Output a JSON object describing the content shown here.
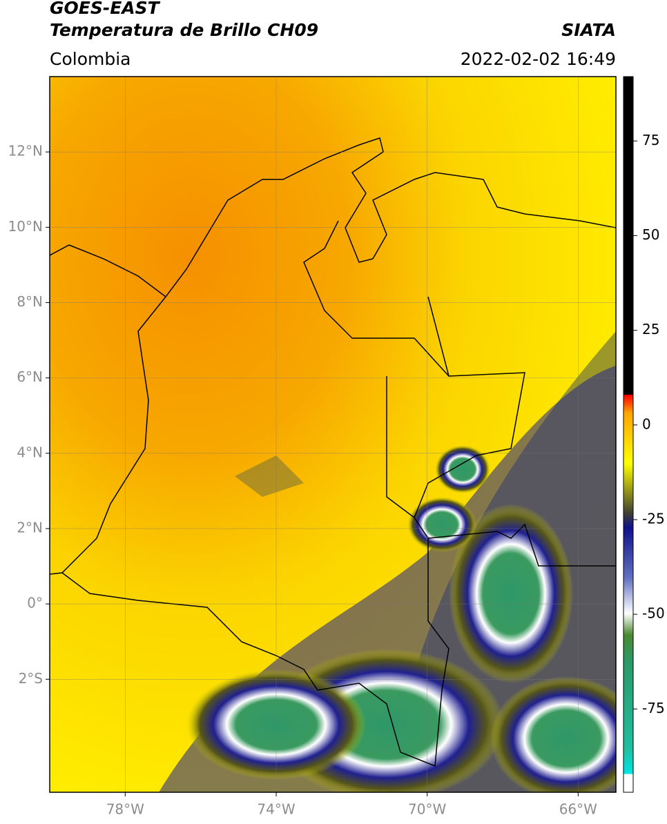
{
  "header": {
    "title": "GOES-EAST",
    "subtitle": "Temperatura de Brillo CH09",
    "source": "SIATA",
    "region": "Colombia",
    "datetime": "2022-02-02 16:49"
  },
  "map": {
    "xlim": [
      -80,
      -65
    ],
    "ylim": [
      -5,
      14
    ],
    "xticks": [
      {
        "value": -78,
        "label": "78°W"
      },
      {
        "value": -74,
        "label": "74°W"
      },
      {
        "value": -70,
        "label": "70°W"
      },
      {
        "value": -66,
        "label": "66°W"
      }
    ],
    "yticks": [
      {
        "value": 12,
        "label": "12°N"
      },
      {
        "value": 10,
        "label": "10°N"
      },
      {
        "value": 8,
        "label": "8°N"
      },
      {
        "value": 6,
        "label": "6°N"
      },
      {
        "value": 4,
        "label": "4°N"
      },
      {
        "value": 2,
        "label": "2°N"
      },
      {
        "value": 0,
        "label": "0°"
      },
      {
        "value": -2,
        "label": "2°S"
      }
    ]
  },
  "colorbar": {
    "lim": [
      -97,
      92
    ],
    "ticks": [
      75,
      50,
      25,
      0,
      -25,
      -50,
      -75
    ]
  }
}
